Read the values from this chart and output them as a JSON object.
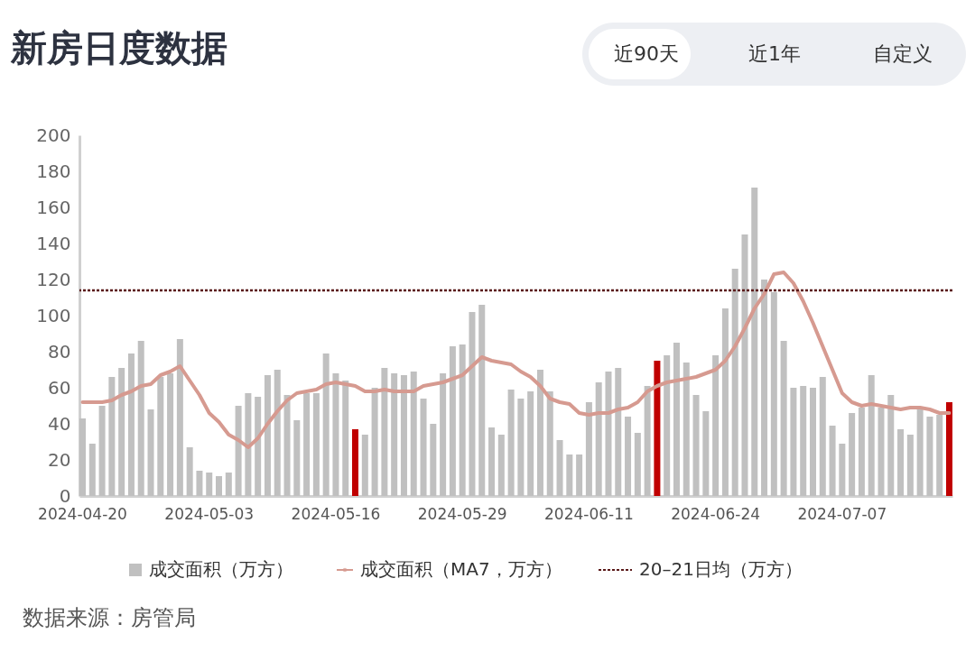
{
  "chart_data": {
    "type": "bar",
    "title": "新房日度数据",
    "categories": [
      "2024-04-20",
      null,
      null,
      null,
      null,
      null,
      null,
      null,
      null,
      null,
      null,
      null,
      null,
      "2024-05-03",
      null,
      null,
      null,
      null,
      null,
      null,
      null,
      null,
      null,
      null,
      null,
      null,
      "2024-05-16",
      null,
      null,
      null,
      null,
      null,
      null,
      null,
      null,
      null,
      null,
      null,
      null,
      "2024-05-29",
      null,
      null,
      null,
      null,
      null,
      null,
      null,
      null,
      null,
      null,
      null,
      null,
      "2024-06-11",
      null,
      null,
      null,
      null,
      null,
      null,
      null,
      null,
      null,
      null,
      null,
      null,
      "2024-06-24",
      null,
      null,
      null,
      null,
      null,
      null,
      null,
      null,
      null,
      null,
      null,
      null,
      "2024-07-07",
      null,
      null,
      null,
      null,
      null,
      null,
      null,
      null,
      null,
      null,
      null
    ],
    "series": [
      {
        "name": "成交面积（万方）",
        "color": "#c0c0c0",
        "colors": [
          "#c0c0c0",
          "#c0c0c0",
          "#c0c0c0",
          "#c0c0c0",
          "#c0c0c0",
          "#c0c0c0",
          "#c0c0c0",
          "#c0c0c0",
          "#c0c0c0",
          "#c0c0c0",
          "#c0c0c0",
          "#c0c0c0",
          "#c0c0c0",
          "#c0c0c0",
          "#c0c0c0",
          "#c0c0c0",
          "#c0c0c0",
          "#c0c0c0",
          "#c0c0c0",
          "#c0c0c0",
          "#c0c0c0",
          "#c0c0c0",
          "#c0c0c0",
          "#c0c0c0",
          "#c0c0c0",
          "#c0c0c0",
          "#c0c0c0",
          "#c0c0c0",
          "#c00000",
          "#c0c0c0",
          "#c0c0c0",
          "#c0c0c0",
          "#c0c0c0",
          "#c0c0c0",
          "#c0c0c0",
          "#c0c0c0",
          "#c0c0c0",
          "#c0c0c0",
          "#c0c0c0",
          "#c0c0c0",
          "#c0c0c0",
          "#c0c0c0",
          "#c0c0c0",
          "#c0c0c0",
          "#c0c0c0",
          "#c0c0c0",
          "#c0c0c0",
          "#c0c0c0",
          "#c0c0c0",
          "#c0c0c0",
          "#c0c0c0",
          "#c0c0c0",
          "#c0c0c0",
          "#c0c0c0",
          "#c0c0c0",
          "#c0c0c0",
          "#c0c0c0",
          "#c0c0c0",
          "#c0c0c0",
          "#c00000",
          "#c0c0c0",
          "#c0c0c0",
          "#c0c0c0",
          "#c0c0c0",
          "#c0c0c0",
          "#c0c0c0",
          "#c0c0c0",
          "#c0c0c0",
          "#c0c0c0",
          "#c0c0c0",
          "#c0c0c0",
          "#c0c0c0",
          "#c0c0c0",
          "#c0c0c0",
          "#c0c0c0",
          "#c0c0c0",
          "#c0c0c0",
          "#c0c0c0",
          "#c0c0c0",
          "#c0c0c0",
          "#c0c0c0",
          "#c0c0c0",
          "#c0c0c0",
          "#c0c0c0",
          "#c0c0c0",
          "#c0c0c0",
          "#c0c0c0",
          "#c0c0c0",
          "#c0c0c0",
          "#c00000"
        ],
        "values": [
          43,
          29,
          50,
          66,
          71,
          79,
          86,
          48,
          66,
          68,
          87,
          27,
          14,
          13,
          11,
          13,
          50,
          57,
          55,
          67,
          70,
          56,
          42,
          57,
          57,
          79,
          68,
          64,
          37,
          34,
          60,
          71,
          68,
          67,
          69,
          54,
          40,
          68,
          83,
          84,
          102,
          106,
          38,
          34,
          59,
          54,
          58,
          70,
          58,
          31,
          23,
          23,
          52,
          63,
          69,
          71,
          44,
          35,
          61,
          75,
          78,
          85,
          74,
          56,
          47,
          78,
          104,
          126,
          145,
          171,
          120,
          113,
          86,
          60,
          61,
          60,
          66,
          39,
          29,
          46,
          49,
          67,
          49,
          56,
          37,
          34,
          48,
          44,
          45,
          52
        ]
      },
      {
        "name": "成交面积（MA7，万方）",
        "type": "line",
        "color": "#d69a90",
        "values": [
          52,
          52,
          52,
          53,
          56,
          58,
          61,
          62,
          67,
          69,
          72,
          64,
          56,
          46,
          41,
          34,
          31,
          27,
          32,
          40,
          47,
          53,
          57,
          58,
          59,
          62,
          63,
          62,
          61,
          58,
          58,
          59,
          58,
          58,
          58,
          61,
          62,
          63,
          65,
          67,
          72,
          77,
          75,
          74,
          73,
          69,
          66,
          61,
          54,
          52,
          51,
          46,
          45,
          46,
          46,
          48,
          49,
          52,
          58,
          61,
          63,
          64,
          65,
          66,
          68,
          70,
          75,
          83,
          93,
          104,
          112,
          123,
          124,
          118,
          108,
          96,
          83,
          70,
          57,
          52,
          50,
          51,
          50,
          49,
          48,
          49,
          49,
          48,
          46,
          46
        ]
      }
    ],
    "ylim": [
      0,
      200
    ],
    "yticks": [
      0,
      20,
      40,
      60,
      80,
      100,
      120,
      140,
      160,
      180,
      200
    ],
    "grid": false,
    "legend": "bottom",
    "ref_lines": [
      {
        "axis": "y",
        "value": 114,
        "label": "20–21日均（万方）",
        "color": "#5a1a1a",
        "line_style": "dotted"
      }
    ],
    "annotations": [
      "近90天",
      "近1年",
      "自定义",
      "数据来源：房管局"
    ]
  }
}
